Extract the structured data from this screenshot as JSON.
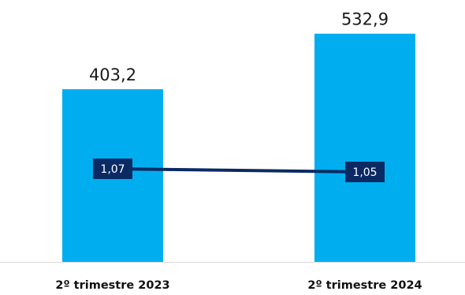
{
  "chart_data": {
    "type": "bar",
    "categories": [
      "2º trimestre 2023",
      "2º trimestre 2024"
    ],
    "series": [
      {
        "kind": "bar",
        "values": [
          403.2,
          532.9
        ],
        "labels": [
          "403,2",
          "532,9"
        ],
        "color": "#00aeef"
      },
      {
        "kind": "line",
        "values": [
          1.07,
          1.05
        ],
        "labels": [
          "1,07",
          "1,05"
        ],
        "color": "#0b2a63"
      }
    ],
    "title": "",
    "xlabel": "",
    "ylabel": "",
    "ylim": [
      0,
      560
    ],
    "grid": false,
    "legend": "none"
  }
}
